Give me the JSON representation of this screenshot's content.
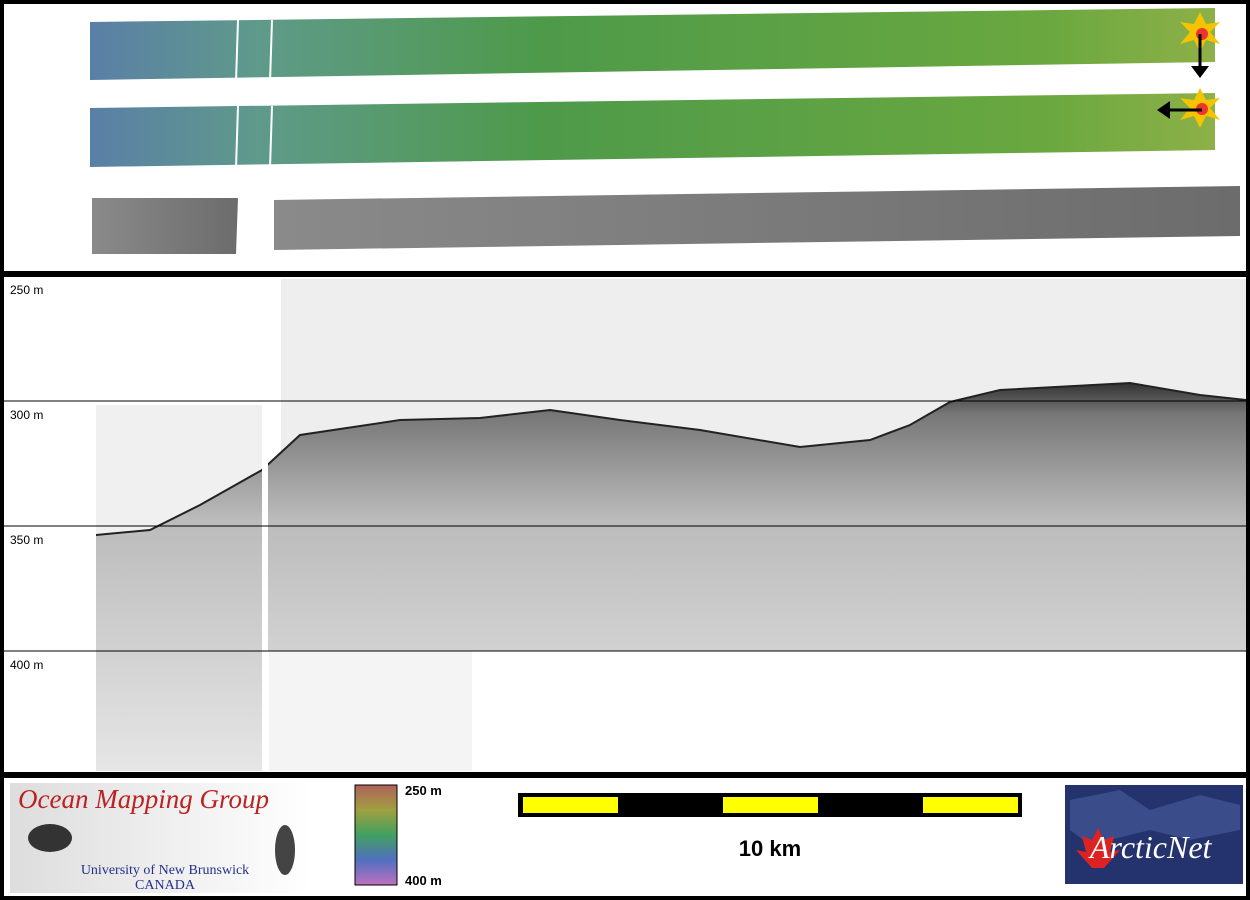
{
  "profile": {
    "depth_labels": [
      "250 m",
      "300 m",
      "350 m",
      "400 m"
    ]
  },
  "legend": {
    "colorbar": {
      "top_label": "250 m",
      "bottom_label": "400 m"
    },
    "scale_bar": {
      "label": "10 km"
    }
  },
  "logos": {
    "omg": {
      "title": "Ocean Mapping Group",
      "subtitle": "University of New Brunswick",
      "country": "CANADA"
    },
    "arcticnet": {
      "name": "ArcticNet"
    }
  }
}
